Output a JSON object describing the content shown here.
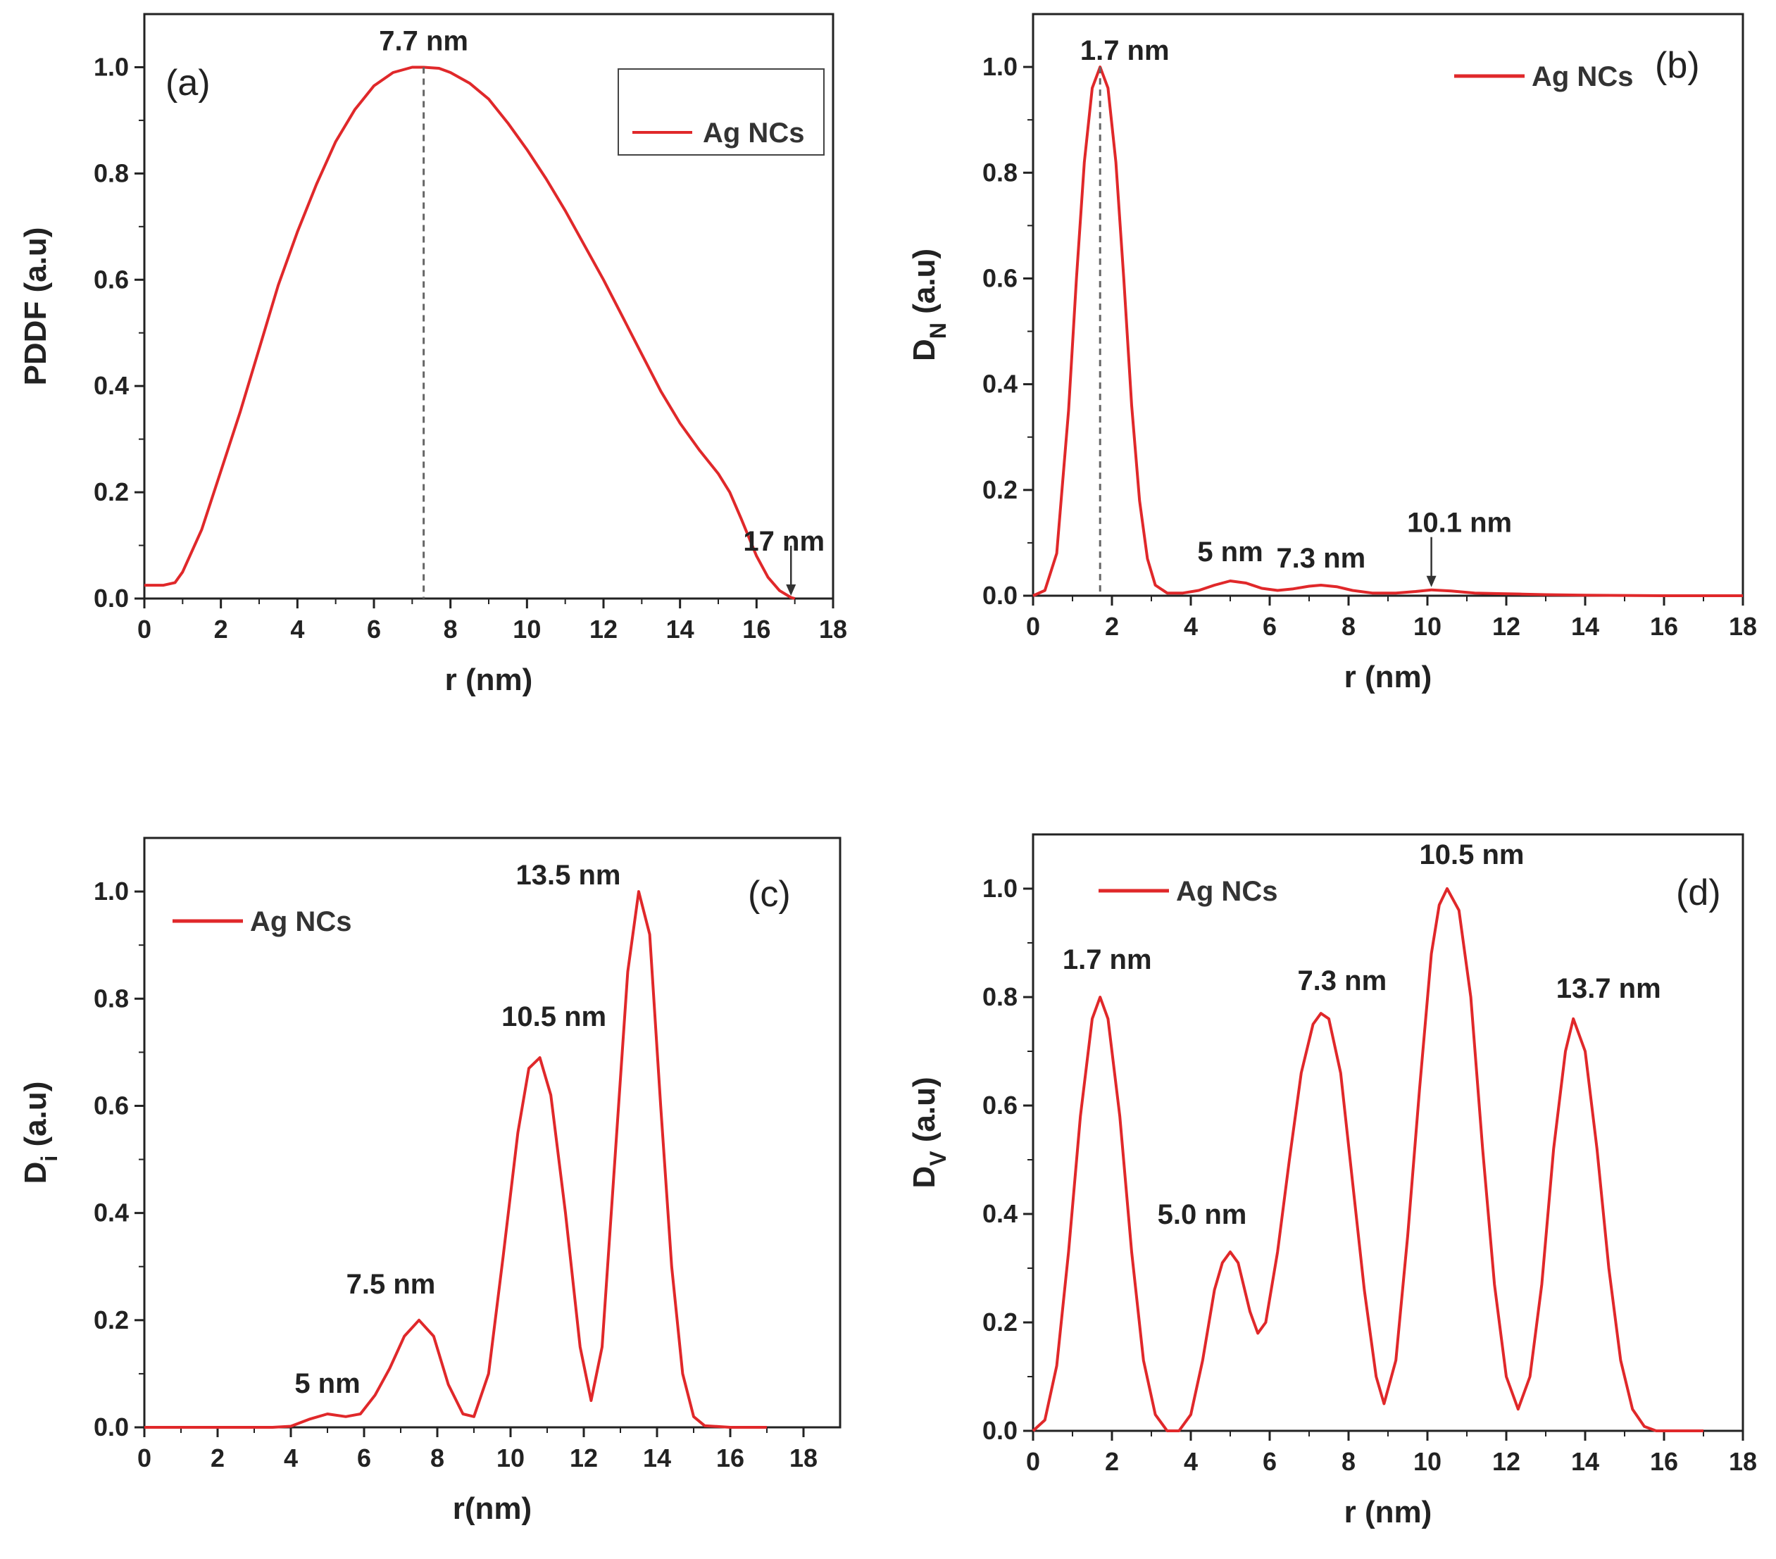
{
  "chart_data": [
    {
      "type": "line",
      "panel_label": "(a)",
      "xlabel": "r (nm)",
      "ylabel": "PDDF (a.u)",
      "xlim": [
        0,
        18
      ],
      "ylim": [
        0,
        1.1
      ],
      "xticks": [
        0,
        2,
        4,
        6,
        8,
        10,
        12,
        14,
        16,
        18
      ],
      "yticks": [
        0.0,
        0.2,
        0.4,
        0.6,
        0.8,
        1.0
      ],
      "legend": {
        "label": "Ag NCs",
        "position": "top-right",
        "boxed": true
      },
      "series": [
        {
          "name": "Ag NCs",
          "color": "#e0282a",
          "x": [
            0,
            0.5,
            0.8,
            1,
            1.5,
            2,
            2.5,
            3,
            3.5,
            4,
            4.5,
            5,
            5.5,
            6,
            6.5,
            7,
            7.3,
            7.7,
            8,
            8.5,
            9,
            9.5,
            10,
            10.5,
            11,
            11.5,
            12,
            12.5,
            13,
            13.5,
            14,
            14.5,
            15,
            15.3,
            15.6,
            16,
            16.3,
            16.6,
            16.9,
            17
          ],
          "y": [
            0.025,
            0.025,
            0.03,
            0.05,
            0.13,
            0.24,
            0.35,
            0.47,
            0.59,
            0.69,
            0.78,
            0.86,
            0.92,
            0.965,
            0.99,
            1.0,
            1.0,
            0.998,
            0.99,
            0.97,
            0.94,
            0.895,
            0.845,
            0.79,
            0.73,
            0.665,
            0.6,
            0.53,
            0.46,
            0.39,
            0.33,
            0.28,
            0.235,
            0.2,
            0.15,
            0.08,
            0.04,
            0.015,
            0.002,
            0.0
          ]
        }
      ],
      "annotations": [
        {
          "text": "7.7 nm",
          "x": 7.3,
          "y": 1.0,
          "kind": "dashed-vline"
        },
        {
          "text": "17 nm",
          "x": 16.9,
          "y": 0.0,
          "kind": "arrow"
        }
      ]
    },
    {
      "type": "line",
      "panel_label": "(b)",
      "xlabel": "r (nm)",
      "ylabel": "D",
      "ylabel_sub": "N",
      "ylabel_suffix": " (a.u)",
      "xlim": [
        0,
        18
      ],
      "ylim": [
        0,
        1.1
      ],
      "xticks": [
        0,
        2,
        4,
        6,
        8,
        10,
        12,
        14,
        16,
        18
      ],
      "yticks": [
        0.0,
        0.2,
        0.4,
        0.6,
        0.8,
        1.0
      ],
      "legend": {
        "label": "Ag NCs",
        "position": "top-right",
        "boxed": false
      },
      "series": [
        {
          "name": "Ag NCs",
          "color": "#e0282a",
          "x": [
            0,
            0.3,
            0.6,
            0.9,
            1.1,
            1.3,
            1.5,
            1.7,
            1.9,
            2.1,
            2.3,
            2.5,
            2.7,
            2.9,
            3.1,
            3.4,
            3.8,
            4.2,
            4.6,
            5.0,
            5.4,
            5.8,
            6.2,
            6.6,
            7.0,
            7.3,
            7.7,
            8.1,
            8.6,
            9.2,
            9.7,
            10.1,
            10.6,
            11.2,
            11.8,
            12.4,
            13,
            14,
            16,
            18
          ],
          "y": [
            0,
            0.01,
            0.08,
            0.35,
            0.6,
            0.82,
            0.96,
            1.0,
            0.96,
            0.82,
            0.6,
            0.36,
            0.18,
            0.07,
            0.02,
            0.005,
            0.005,
            0.01,
            0.02,
            0.028,
            0.024,
            0.014,
            0.01,
            0.013,
            0.018,
            0.02,
            0.017,
            0.01,
            0.005,
            0.005,
            0.008,
            0.011,
            0.009,
            0.005,
            0.004,
            0.003,
            0.002,
            0.001,
            0.0,
            0.0
          ]
        }
      ],
      "annotations": [
        {
          "text": "1.7 nm",
          "x": 1.7,
          "y": 1.0,
          "kind": "dashed-vline"
        },
        {
          "text": "5 nm",
          "x": 5.0,
          "y": 0.028
        },
        {
          "text": "7.3 nm",
          "x": 7.3,
          "y": 0.02
        },
        {
          "text": "10.1 nm",
          "x": 10.1,
          "y": 0.011,
          "kind": "arrow"
        }
      ]
    },
    {
      "type": "line",
      "panel_label": "(c)",
      "xlabel": "r(nm)",
      "ylabel": "D",
      "ylabel_sub": "i",
      "ylabel_suffix": " (a.u)",
      "xlim": [
        0,
        19
      ],
      "ylim": [
        0,
        1.1
      ],
      "xticks": [
        0,
        2,
        4,
        6,
        8,
        10,
        12,
        14,
        16,
        18
      ],
      "yticks": [
        0.0,
        0.2,
        0.4,
        0.6,
        0.8,
        1.0
      ],
      "legend": {
        "label": "Ag NCs",
        "position": "top-left",
        "boxed": false
      },
      "series": [
        {
          "name": "Ag NCs",
          "color": "#e0282a",
          "x": [
            0,
            2,
            3.5,
            4.0,
            4.5,
            5.0,
            5.5,
            5.9,
            6.3,
            6.7,
            7.1,
            7.5,
            7.9,
            8.3,
            8.7,
            9.0,
            9.4,
            9.8,
            10.2,
            10.5,
            10.8,
            11.1,
            11.5,
            11.9,
            12.2,
            12.5,
            12.8,
            13.2,
            13.5,
            13.8,
            14.1,
            14.4,
            14.7,
            15.0,
            15.3,
            16,
            17
          ],
          "y": [
            0,
            0,
            0,
            0.002,
            0.015,
            0.025,
            0.02,
            0.025,
            0.06,
            0.11,
            0.17,
            0.2,
            0.17,
            0.08,
            0.025,
            0.02,
            0.1,
            0.32,
            0.55,
            0.67,
            0.69,
            0.62,
            0.4,
            0.15,
            0.05,
            0.15,
            0.45,
            0.85,
            1.0,
            0.92,
            0.6,
            0.3,
            0.1,
            0.02,
            0.003,
            0,
            0
          ]
        }
      ],
      "annotations": [
        {
          "text": "5 nm",
          "x": 5.0,
          "y": 0.025
        },
        {
          "text": "7.5 nm",
          "x": 7.5,
          "y": 0.2
        },
        {
          "text": "10.5 nm",
          "x": 10.8,
          "y": 0.69
        },
        {
          "text": "13.5 nm",
          "x": 13.5,
          "y": 1.0
        }
      ]
    },
    {
      "type": "line",
      "panel_label": "(d)",
      "xlabel": "r (nm)",
      "ylabel": "D",
      "ylabel_sub": "V",
      "ylabel_suffix": " (a.u)",
      "xlim": [
        0,
        18
      ],
      "ylim": [
        0,
        1.1
      ],
      "xticks": [
        0,
        2,
        4,
        6,
        8,
        10,
        12,
        14,
        16,
        18
      ],
      "yticks": [
        0.0,
        0.2,
        0.4,
        0.6,
        0.8,
        1.0
      ],
      "legend": {
        "label": "Ag NCs",
        "position": "top-left",
        "boxed": false
      },
      "series": [
        {
          "name": "Ag NCs",
          "color": "#e0282a",
          "x": [
            0,
            0.3,
            0.6,
            0.9,
            1.2,
            1.5,
            1.7,
            1.9,
            2.2,
            2.5,
            2.8,
            3.1,
            3.4,
            3.7,
            4.0,
            4.3,
            4.6,
            4.8,
            5.0,
            5.2,
            5.5,
            5.7,
            5.9,
            6.2,
            6.5,
            6.8,
            7.1,
            7.3,
            7.5,
            7.8,
            8.1,
            8.4,
            8.7,
            8.9,
            9.2,
            9.5,
            9.8,
            10.1,
            10.3,
            10.5,
            10.8,
            11.1,
            11.4,
            11.7,
            12.0,
            12.3,
            12.6,
            12.9,
            13.2,
            13.5,
            13.7,
            14.0,
            14.3,
            14.6,
            14.9,
            15.2,
            15.5,
            15.8,
            16.2,
            17
          ],
          "y": [
            0,
            0.02,
            0.12,
            0.33,
            0.58,
            0.76,
            0.8,
            0.76,
            0.58,
            0.33,
            0.13,
            0.03,
            0.0,
            0.0,
            0.03,
            0.13,
            0.26,
            0.31,
            0.33,
            0.31,
            0.22,
            0.18,
            0.2,
            0.33,
            0.5,
            0.66,
            0.75,
            0.77,
            0.76,
            0.66,
            0.46,
            0.26,
            0.1,
            0.05,
            0.13,
            0.36,
            0.63,
            0.88,
            0.97,
            1.0,
            0.96,
            0.8,
            0.52,
            0.27,
            0.1,
            0.04,
            0.1,
            0.27,
            0.52,
            0.7,
            0.76,
            0.7,
            0.52,
            0.3,
            0.13,
            0.04,
            0.008,
            0.0,
            0,
            0
          ]
        }
      ],
      "annotations": [
        {
          "text": "1.7 nm",
          "x": 1.7,
          "y": 0.8
        },
        {
          "text": "5.0 nm",
          "x": 5.0,
          "y": 0.33
        },
        {
          "text": "7.3 nm",
          "x": 7.3,
          "y": 0.77
        },
        {
          "text": "10.5 nm",
          "x": 10.5,
          "y": 1.0
        },
        {
          "text": "13.7 nm",
          "x": 13.7,
          "y": 0.76
        }
      ]
    }
  ]
}
